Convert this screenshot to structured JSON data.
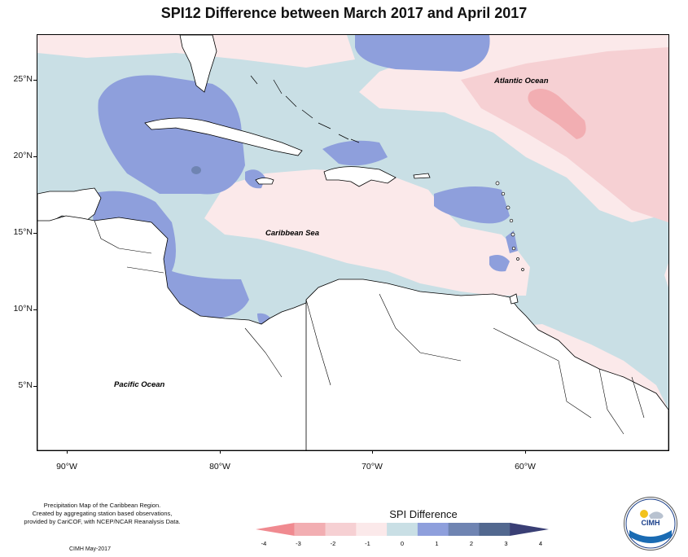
{
  "title": "SPI12 Difference between March 2017 and April 2017",
  "map": {
    "ocean_labels": {
      "atlantic": "Atlantic Ocean",
      "caribbean": "Caribbean Sea",
      "pacific": "Pacific Ocean"
    },
    "lat_labels": [
      "25°N",
      "20°N",
      "15°N",
      "10°N",
      "5°N"
    ],
    "lon_labels": [
      "90°W",
      "80°W",
      "70°W",
      "60°W"
    ],
    "colors": {
      "land": "#ffffff",
      "coast": "#000000"
    }
  },
  "legend": {
    "title": "SPI Difference",
    "ticks": [
      "-4",
      "-3",
      "-2",
      "-1",
      "0",
      "1",
      "2",
      "3",
      "4"
    ],
    "bins": [
      {
        "color": "#f08a90"
      },
      {
        "color": "#f2aeb2"
      },
      {
        "color": "#f6d0d3"
      },
      {
        "color": "#fbe9ea"
      },
      {
        "color": "#c9dfe5"
      },
      {
        "color": "#8e9fdc"
      },
      {
        "color": "#6f84b2"
      },
      {
        "color": "#52688f"
      },
      {
        "color": "#3a3f75"
      }
    ]
  },
  "credit": {
    "lines": [
      "Precipitation Map of the Caribbean Region.",
      "Created by aggregating station based observations,",
      "provided by CariCOF, with NCEP/NCAR Reanalysis Data."
    ],
    "date": "CIMH May-2017"
  },
  "logo": {
    "text": "CIMH"
  }
}
